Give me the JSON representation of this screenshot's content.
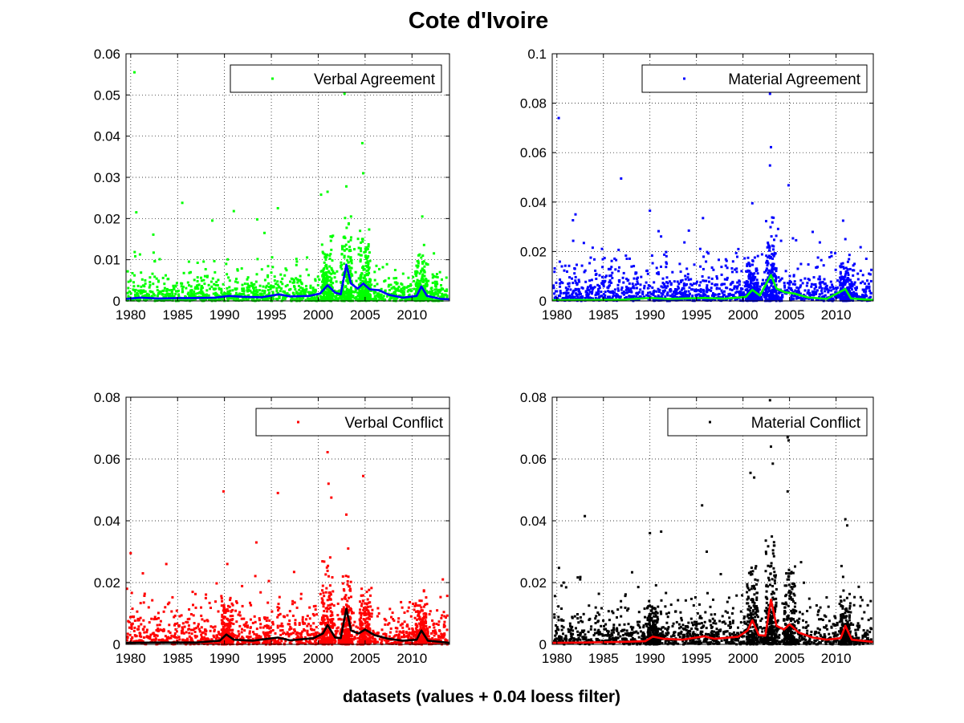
{
  "figure": {
    "title": "Cote d'Ivoire",
    "xlabel": "datasets (values + 0.04 loess filter)"
  },
  "chart_data": [
    {
      "type": "scatter",
      "series": [
        {
          "name": "Verbal Agreement",
          "role": "values",
          "color": "#00ff00"
        },
        {
          "name": "",
          "role": "loess",
          "color": "#0000ff"
        }
      ],
      "xlim": [
        1979.5,
        2014
      ],
      "ylim": [
        0,
        0.06
      ],
      "xticks": [
        1980,
        1985,
        1990,
        1995,
        2000,
        2005,
        2010
      ],
      "yticks": [
        0,
        0.01,
        0.02,
        0.03,
        0.04,
        0.05,
        0.06
      ],
      "ytick_labels": [
        "0",
        "0.01",
        "0.02",
        "0.03",
        "0.04",
        "0.05",
        "0.06"
      ],
      "grid": true,
      "legend_position": "top-right",
      "baseline": 0.003,
      "peaks": [
        [
          1980.4,
          0.0555
        ],
        [
          1980.6,
          0.0215
        ],
        [
          1985.5,
          0.0238
        ],
        [
          1988.7,
          0.0195
        ],
        [
          1991.0,
          0.0218
        ],
        [
          1993.5,
          0.0198
        ],
        [
          1995.7,
          0.0225
        ],
        [
          2000.3,
          0.0258
        ],
        [
          2001.0,
          0.0265
        ],
        [
          2002.8,
          0.0503
        ],
        [
          2003.0,
          0.0278
        ],
        [
          2004.7,
          0.0383
        ],
        [
          2004.8,
          0.031
        ],
        [
          2011.1,
          0.0205
        ]
      ],
      "clusters": [
        [
          2001.0,
          0.018
        ],
        [
          2003.0,
          0.024
        ],
        [
          2005.0,
          0.02
        ],
        [
          2011.0,
          0.014
        ]
      ],
      "loess": [
        [
          1979.5,
          0.0005
        ],
        [
          1981,
          0.0008
        ],
        [
          1983,
          0.0006
        ],
        [
          1985,
          0.0007
        ],
        [
          1987,
          0.0007
        ],
        [
          1989,
          0.0008
        ],
        [
          1990.5,
          0.0012
        ],
        [
          1992,
          0.001
        ],
        [
          1994,
          0.0009
        ],
        [
          1995.8,
          0.0016
        ],
        [
          1997,
          0.0011
        ],
        [
          1999,
          0.0012
        ],
        [
          2000.2,
          0.0018
        ],
        [
          2001,
          0.0038
        ],
        [
          2001.8,
          0.002
        ],
        [
          2002.4,
          0.0016
        ],
        [
          2003,
          0.0088
        ],
        [
          2003.5,
          0.0042
        ],
        [
          2004.2,
          0.003
        ],
        [
          2004.8,
          0.0042
        ],
        [
          2005.5,
          0.0028
        ],
        [
          2006.5,
          0.0026
        ],
        [
          2007.5,
          0.0015
        ],
        [
          2009,
          0.0008
        ],
        [
          2010.5,
          0.0012
        ],
        [
          2011,
          0.0035
        ],
        [
          2011.6,
          0.0012
        ],
        [
          2013,
          0.0005
        ],
        [
          2014,
          0.0004
        ]
      ]
    },
    {
      "type": "scatter",
      "series": [
        {
          "name": "Material Agreement",
          "role": "values",
          "color": "#0000ff"
        },
        {
          "name": "",
          "role": "loess",
          "color": "#00ff00"
        }
      ],
      "xlim": [
        1979.5,
        2014
      ],
      "ylim": [
        0,
        0.1
      ],
      "xticks": [
        1980,
        1985,
        1990,
        1995,
        2000,
        2005,
        2010
      ],
      "yticks": [
        0,
        0.02,
        0.04,
        0.06,
        0.08,
        0.1
      ],
      "ytick_labels": [
        "0",
        "0.02",
        "0.04",
        "0.06",
        "0.08",
        "0.1"
      ],
      "grid": true,
      "legend_position": "top-right",
      "baseline": 0.006,
      "peaks": [
        [
          1980.2,
          0.074
        ],
        [
          1986.9,
          0.0495
        ],
        [
          1990.0,
          0.0365
        ],
        [
          1982.0,
          0.035
        ],
        [
          2001.0,
          0.0395
        ],
        [
          2002.9,
          0.0838
        ],
        [
          2003.0,
          0.0622
        ],
        [
          2002.9,
          0.0548
        ],
        [
          2004.9,
          0.0468
        ],
        [
          1995.7,
          0.0335
        ],
        [
          2011.0,
          0.025
        ]
      ],
      "clusters": [
        [
          2001.0,
          0.02
        ],
        [
          2003.0,
          0.035
        ],
        [
          2011.0,
          0.02
        ]
      ],
      "loess": [
        [
          1979.5,
          0.0003
        ],
        [
          1983,
          0.0004
        ],
        [
          1987,
          0.0005
        ],
        [
          1990,
          0.0012
        ],
        [
          1992,
          0.0008
        ],
        [
          1995.8,
          0.0012
        ],
        [
          1998,
          0.0009
        ],
        [
          2000.3,
          0.0016
        ],
        [
          2001,
          0.0045
        ],
        [
          2001.8,
          0.0022
        ],
        [
          2003,
          0.0105
        ],
        [
          2003.6,
          0.005
        ],
        [
          2004.5,
          0.0035
        ],
        [
          2005.5,
          0.003
        ],
        [
          2007,
          0.0014
        ],
        [
          2009,
          0.0008
        ],
        [
          2011,
          0.0048
        ],
        [
          2011.6,
          0.001
        ],
        [
          2014,
          0.0004
        ]
      ]
    },
    {
      "type": "scatter",
      "series": [
        {
          "name": "Verbal Conflict",
          "role": "values",
          "color": "#ff0000"
        },
        {
          "name": "",
          "role": "loess",
          "color": "#000000"
        }
      ],
      "xlim": [
        1979.5,
        2014
      ],
      "ylim": [
        0,
        0.08
      ],
      "xticks": [
        1980,
        1985,
        1990,
        1995,
        2000,
        2005,
        2010
      ],
      "yticks": [
        0,
        0.02,
        0.04,
        0.06,
        0.08
      ],
      "ytick_labels": [
        "0",
        "0.02",
        "0.04",
        "0.06",
        "0.08"
      ],
      "grid": true,
      "legend_position": "top-right",
      "baseline": 0.005,
      "peaks": [
        [
          1979.6,
          0.018
        ],
        [
          1980.0,
          0.0295
        ],
        [
          1981.3,
          0.023
        ],
        [
          1983.8,
          0.026
        ],
        [
          1989.9,
          0.0495
        ],
        [
          1990.3,
          0.026
        ],
        [
          1993.4,
          0.033
        ],
        [
          1995.7,
          0.049
        ],
        [
          2001.0,
          0.0622
        ],
        [
          2001.1,
          0.052
        ],
        [
          2001.4,
          0.0475
        ],
        [
          2003.0,
          0.042
        ],
        [
          2004.8,
          0.0545
        ],
        [
          2003.2,
          0.031
        ]
      ],
      "clusters": [
        [
          1990.3,
          0.018
        ],
        [
          2001.0,
          0.03
        ],
        [
          2003.0,
          0.028
        ],
        [
          2005.0,
          0.02
        ],
        [
          2011.0,
          0.02
        ]
      ],
      "loess": [
        [
          1979.5,
          0.0005
        ],
        [
          1983,
          0.0006
        ],
        [
          1987,
          0.0006
        ],
        [
          1989.5,
          0.0012
        ],
        [
          1990.2,
          0.0032
        ],
        [
          1991,
          0.0015
        ],
        [
          1993,
          0.0012
        ],
        [
          1995.7,
          0.0022
        ],
        [
          1997,
          0.0013
        ],
        [
          1999.5,
          0.002
        ],
        [
          2000.5,
          0.0035
        ],
        [
          2001,
          0.0062
        ],
        [
          2001.8,
          0.0022
        ],
        [
          2002.4,
          0.002
        ],
        [
          2003,
          0.0115
        ],
        [
          2003.5,
          0.0045
        ],
        [
          2004.3,
          0.0035
        ],
        [
          2005,
          0.0048
        ],
        [
          2006,
          0.003
        ],
        [
          2007.5,
          0.0018
        ],
        [
          2009,
          0.0012
        ],
        [
          2010.5,
          0.0015
        ],
        [
          2011,
          0.0045
        ],
        [
          2011.7,
          0.0012
        ],
        [
          2014,
          0.0005
        ]
      ]
    },
    {
      "type": "scatter",
      "series": [
        {
          "name": "Material Conflict",
          "role": "values",
          "color": "#000000"
        },
        {
          "name": "",
          "role": "loess",
          "color": "#ff0000"
        }
      ],
      "xlim": [
        1979.5,
        2014
      ],
      "ylim": [
        0,
        0.08
      ],
      "xticks": [
        1980,
        1985,
        1990,
        1995,
        2000,
        2005,
        2010
      ],
      "yticks": [
        0,
        0.02,
        0.04,
        0.06,
        0.08
      ],
      "ytick_labels": [
        "0",
        "0.02",
        "0.04",
        "0.06",
        "0.08"
      ],
      "grid": true,
      "legend_position": "top-right",
      "baseline": 0.005,
      "peaks": [
        [
          1983.0,
          0.0415
        ],
        [
          1980.5,
          0.019
        ],
        [
          1982.5,
          0.021
        ],
        [
          1990.0,
          0.036
        ],
        [
          1991.2,
          0.0365
        ],
        [
          1995.6,
          0.045
        ],
        [
          1996.1,
          0.03
        ],
        [
          2000.8,
          0.0555
        ],
        [
          2001.2,
          0.054
        ],
        [
          2002.9,
          0.079
        ],
        [
          2003.0,
          0.064
        ],
        [
          2003.2,
          0.0585
        ],
        [
          2004.8,
          0.067
        ],
        [
          2004.9,
          0.066
        ],
        [
          2004.8,
          0.0495
        ],
        [
          2011.0,
          0.0405
        ],
        [
          2011.2,
          0.0385
        ]
      ],
      "clusters": [
        [
          1990.3,
          0.016
        ],
        [
          2001.0,
          0.03
        ],
        [
          2003.0,
          0.04
        ],
        [
          2005.0,
          0.03
        ],
        [
          2011.0,
          0.02
        ]
      ],
      "loess": [
        [
          1979.5,
          0.0005
        ],
        [
          1983,
          0.0006
        ],
        [
          1987,
          0.0008
        ],
        [
          1989.5,
          0.001
        ],
        [
          1990.3,
          0.0025
        ],
        [
          1991.5,
          0.0018
        ],
        [
          1993.5,
          0.0015
        ],
        [
          1995.8,
          0.0026
        ],
        [
          1997,
          0.0018
        ],
        [
          1999.5,
          0.0025
        ],
        [
          2000.5,
          0.0045
        ],
        [
          2001,
          0.0078
        ],
        [
          2001.7,
          0.003
        ],
        [
          2002.4,
          0.0028
        ],
        [
          2003,
          0.0145
        ],
        [
          2003.6,
          0.006
        ],
        [
          2004.4,
          0.0048
        ],
        [
          2005,
          0.0065
        ],
        [
          2006,
          0.0038
        ],
        [
          2007.5,
          0.0022
        ],
        [
          2009,
          0.0015
        ],
        [
          2010.5,
          0.002
        ],
        [
          2011,
          0.006
        ],
        [
          2011.7,
          0.0015
        ],
        [
          2014,
          0.0008
        ]
      ]
    }
  ]
}
